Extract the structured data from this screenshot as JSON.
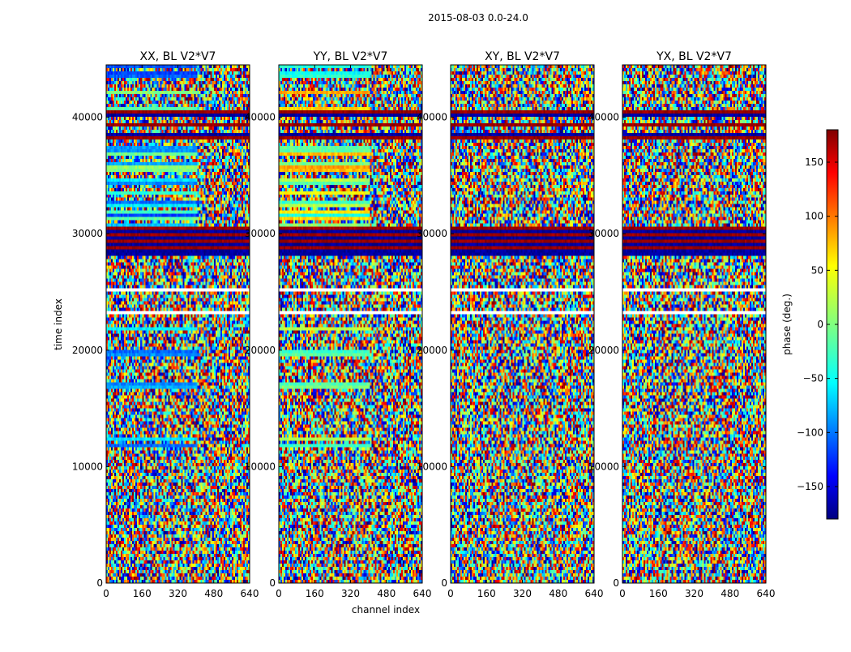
{
  "chart_data": {
    "type": "heatmap",
    "suptitle": "2015-08-03 0.0-24.0",
    "panels": [
      {
        "title": "XX, BL V2*V7",
        "mode": "XX"
      },
      {
        "title": "YY, BL V2*V7",
        "mode": "YY"
      },
      {
        "title": "XY, BL V2*V7",
        "mode": "XY"
      },
      {
        "title": "YX, BL V2*V7",
        "mode": "YX"
      }
    ],
    "xlabel": "channel index",
    "ylabel": "time index",
    "xlim": [
      0,
      640
    ],
    "ylim": [
      0,
      44500
    ],
    "xticks": [
      0,
      160,
      320,
      480,
      640
    ],
    "xtick_labels": [
      "0",
      "160",
      "320",
      "480",
      "640"
    ],
    "yticks": [
      0,
      10000,
      20000,
      30000,
      40000
    ],
    "ytick_labels": [
      "0",
      "10000",
      "20000",
      "30000",
      "40000"
    ],
    "colorbar": {
      "label": "phase (deg.)",
      "range": [
        -180,
        180
      ],
      "ticks": [
        -150,
        -100,
        -50,
        0,
        50,
        100,
        150
      ],
      "tick_labels": [
        "−150",
        "−100",
        "−50",
        "0",
        "50",
        "100",
        "150"
      ],
      "colormap": "jet"
    },
    "colormap_stops": [
      "#000080",
      "#0000ff",
      "#00ffff",
      "#80ff80",
      "#ffff00",
      "#ff0000",
      "#800000"
    ]
  }
}
